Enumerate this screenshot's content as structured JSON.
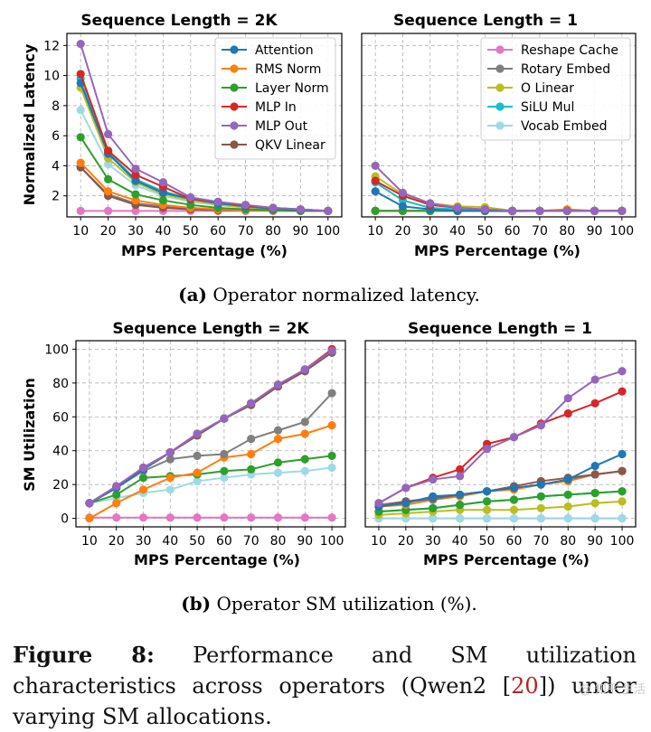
{
  "colors": {
    "Attention": "#1f77b4",
    "RMS Norm": "#ff7f0e",
    "Layer Norm": "#2ca02c",
    "MLP In": "#d62728",
    "MLP Out": "#9467bd",
    "QKV Linear": "#8c564b",
    "Reshape Cache": "#e377c2",
    "Rotary Embed": "#7f7f7f",
    "O Linear": "#bcbd22",
    "SiLU Mul": "#17becf",
    "Vocab Embed": "#9edae5"
  },
  "subcaptions": {
    "a_label": "(a)",
    "a_text": " Operator normalized latency.",
    "b_label": "(b)",
    "b_text": " Operator SM utilization (%)."
  },
  "caption": {
    "label": "Figure 8:",
    "text_before": " Performance and SM utilization characteristics across operators (Qwen2 [",
    "cite": "20",
    "text_after": "]) under varying SM allocations."
  },
  "watermark": "@ 知乎 生活",
  "chart_data": [
    {
      "id": "a-left",
      "type": "line",
      "title": "Sequence Length = 2K",
      "xlabel": "MPS Percentage (%)",
      "ylabel": "Normalized Latency",
      "x": [
        10,
        20,
        30,
        40,
        50,
        60,
        70,
        80,
        90,
        100
      ],
      "xlim": [
        5,
        105
      ],
      "ylim": [
        0.6,
        12.8
      ],
      "yticks": [
        2,
        4,
        6,
        8,
        10,
        12
      ],
      "legend": "top-right",
      "series": [
        {
          "name": "Attention",
          "values": [
            9.5,
            4.8,
            3.0,
            2.2,
            1.8,
            1.5,
            1.3,
            1.15,
            1.05,
            1.0
          ]
        },
        {
          "name": "RMS Norm",
          "values": [
            4.2,
            2.3,
            1.7,
            1.4,
            1.2,
            1.1,
            1.05,
            1.02,
            1.0,
            1.0
          ]
        },
        {
          "name": "Layer Norm",
          "values": [
            5.9,
            3.1,
            2.1,
            1.7,
            1.4,
            1.2,
            1.1,
            1.05,
            1.0,
            1.0
          ]
        },
        {
          "name": "MLP In",
          "values": [
            10.1,
            5.0,
            3.4,
            2.6,
            1.8,
            1.6,
            1.35,
            1.2,
            1.1,
            1.0
          ]
        },
        {
          "name": "MLP Out",
          "values": [
            12.1,
            6.1,
            3.8,
            2.9,
            1.9,
            1.6,
            1.4,
            1.2,
            1.1,
            1.0
          ]
        },
        {
          "name": "QKV Linear",
          "values": [
            3.9,
            2.0,
            1.4,
            1.2,
            1.1,
            1.05,
            1.05,
            1.02,
            1.0,
            1.0
          ]
        },
        {
          "name": "Reshape Cache",
          "values": [
            1.0,
            1.0,
            1.0,
            1.0,
            1.0,
            1.0,
            1.0,
            1.0,
            1.0,
            1.0
          ]
        },
        {
          "name": "Rotary Embed",
          "values": [
            3.9,
            2.1,
            1.5,
            1.3,
            1.2,
            1.1,
            1.05,
            1.02,
            1.0,
            1.0
          ]
        },
        {
          "name": "O Linear",
          "values": [
            9.2,
            4.5,
            2.9,
            2.1,
            1.7,
            1.4,
            1.25,
            1.15,
            1.05,
            1.0
          ]
        },
        {
          "name": "SiLU Mul",
          "values": [
            9.8,
            4.9,
            3.1,
            2.3,
            1.8,
            1.5,
            1.3,
            1.15,
            1.05,
            1.0
          ]
        },
        {
          "name": "Vocab Embed",
          "values": [
            7.7,
            4.1,
            2.7,
            2.0,
            1.6,
            1.4,
            1.2,
            1.1,
            1.05,
            1.0
          ]
        }
      ]
    },
    {
      "id": "a-right",
      "type": "line",
      "title": "Sequence Length = 1",
      "xlabel": "MPS Percentage (%)",
      "ylabel": "",
      "x": [
        10,
        20,
        30,
        40,
        50,
        60,
        70,
        80,
        90,
        100
      ],
      "xlim": [
        5,
        105
      ],
      "ylim": [
        0.6,
        12.8
      ],
      "yticks": [],
      "legend": "top-right",
      "series": [
        {
          "name": "Attention",
          "values": [
            2.3,
            1.3,
            1.1,
            1.0,
            1.0,
            1.0,
            1.0,
            1.0,
            1.0,
            1.0
          ]
        },
        {
          "name": "RMS Norm",
          "values": [
            1.0,
            1.0,
            1.0,
            1.0,
            1.0,
            1.0,
            1.0,
            1.1,
            1.0,
            1.0
          ]
        },
        {
          "name": "Layer Norm",
          "values": [
            1.0,
            1.0,
            1.0,
            1.0,
            1.0,
            1.0,
            1.0,
            1.0,
            1.0,
            1.0
          ]
        },
        {
          "name": "MLP In",
          "values": [
            3.0,
            2.0,
            1.4,
            1.2,
            1.1,
            1.0,
            1.0,
            1.0,
            1.0,
            1.0
          ]
        },
        {
          "name": "MLP Out",
          "values": [
            4.0,
            2.2,
            1.5,
            1.2,
            1.1,
            1.0,
            1.0,
            1.0,
            1.0,
            1.0
          ]
        },
        {
          "name": "QKV Linear",
          "values": [
            1.0,
            1.0,
            1.0,
            1.0,
            1.0,
            1.0,
            1.0,
            1.0,
            1.0,
            1.0
          ]
        },
        {
          "name": "Reshape Cache",
          "values": [
            1.0,
            1.0,
            1.0,
            1.0,
            1.0,
            1.0,
            1.0,
            1.0,
            1.0,
            1.0
          ]
        },
        {
          "name": "Rotary Embed",
          "values": [
            1.0,
            1.0,
            1.0,
            1.0,
            1.0,
            1.0,
            1.0,
            1.0,
            1.0,
            1.0
          ]
        },
        {
          "name": "O Linear",
          "values": [
            3.3,
            2.1,
            1.5,
            1.3,
            1.25,
            1.0,
            1.0,
            1.0,
            1.0,
            1.0
          ]
        },
        {
          "name": "SiLU Mul",
          "values": [
            2.9,
            1.7,
            1.2,
            1.1,
            1.0,
            1.0,
            1.0,
            1.0,
            1.0,
            1.0
          ]
        },
        {
          "name": "Vocab Embed",
          "values": [
            1.0,
            1.0,
            1.0,
            1.0,
            1.0,
            0.95,
            1.0,
            1.0,
            1.0,
            1.0
          ]
        }
      ]
    },
    {
      "id": "b-left",
      "type": "line",
      "title": "Sequence Length = 2K",
      "xlabel": "MPS Percentage (%)",
      "ylabel": "SM Utilization",
      "x": [
        10,
        20,
        30,
        40,
        50,
        60,
        70,
        80,
        90,
        100
      ],
      "xlim": [
        5,
        105
      ],
      "ylim": [
        -5,
        105
      ],
      "yticks": [
        0,
        20,
        40,
        60,
        80,
        100
      ],
      "series": [
        {
          "name": "Attention",
          "values": [
            9,
            18,
            29,
            39,
            50,
            59,
            68,
            79,
            88,
            99
          ]
        },
        {
          "name": "RMS Norm",
          "values": [
            0,
            9,
            17,
            24,
            27,
            36,
            38,
            47,
            50,
            55
          ]
        },
        {
          "name": "Layer Norm",
          "values": [
            9,
            14,
            24,
            25,
            26,
            28,
            29,
            33,
            35,
            37
          ]
        },
        {
          "name": "MLP In",
          "values": [
            9,
            19,
            30,
            39,
            50,
            59,
            68,
            79,
            88,
            100
          ]
        },
        {
          "name": "MLP Out",
          "values": [
            9,
            19,
            30,
            39,
            50,
            59,
            68,
            79,
            88,
            99
          ]
        },
        {
          "name": "QKV Linear",
          "values": [
            9,
            18,
            29,
            39,
            49,
            59,
            67,
            78,
            87,
            98
          ]
        },
        {
          "name": "Reshape Cache",
          "values": [
            0.5,
            0.5,
            0.5,
            0.5,
            0.5,
            0.5,
            0.5,
            0.5,
            0.5,
            0.5
          ]
        },
        {
          "name": "Rotary Embed",
          "values": [
            9,
            18,
            28,
            35,
            37,
            38,
            47,
            52,
            57,
            74
          ]
        },
        {
          "name": "O Linear",
          "values": [
            9,
            18,
            29,
            39,
            49,
            59,
            68,
            79,
            88,
            98
          ]
        },
        {
          "name": "SiLU Mul",
          "values": [
            9,
            18,
            29,
            39,
            49,
            59,
            67,
            78,
            87,
            98
          ]
        },
        {
          "name": "Vocab Embed",
          "values": [
            9,
            12,
            15,
            17,
            22,
            24,
            26,
            27,
            28,
            30
          ]
        }
      ]
    },
    {
      "id": "b-right",
      "type": "line",
      "title": "Sequence Length = 1",
      "xlabel": "MPS Percentage (%)",
      "ylabel": "",
      "x": [
        10,
        20,
        30,
        40,
        50,
        60,
        70,
        80,
        90,
        100
      ],
      "xlim": [
        5,
        105
      ],
      "ylim": [
        -5,
        105
      ],
      "yticks": [],
      "series": [
        {
          "name": "Attention",
          "values": [
            7,
            9,
            13,
            14,
            16,
            18,
            20,
            23,
            31,
            38
          ]
        },
        {
          "name": "RMS Norm",
          "values": [
            7,
            8,
            11,
            13,
            16,
            17,
            20,
            22,
            26,
            28
          ]
        },
        {
          "name": "Layer Norm",
          "values": [
            4,
            5,
            6,
            8,
            10,
            11,
            13,
            14,
            15,
            16
          ]
        },
        {
          "name": "MLP In",
          "values": [
            9,
            18,
            24,
            29,
            44,
            48,
            56,
            62,
            68,
            75
          ]
        },
        {
          "name": "MLP Out",
          "values": [
            9,
            18,
            23,
            25,
            41,
            48,
            55,
            71,
            82,
            87
          ]
        },
        {
          "name": "QKV Linear",
          "values": [
            7,
            10,
            12,
            14,
            16,
            19,
            22,
            24,
            26,
            28
          ]
        },
        {
          "name": "Reshape Cache",
          "values": [
            0,
            0,
            0,
            0,
            0,
            0,
            0,
            0,
            0,
            0
          ]
        },
        {
          "name": "Rotary Embed",
          "values": [
            8,
            10,
            11,
            14,
            16,
            18,
            20,
            23,
            26,
            28
          ]
        },
        {
          "name": "O Linear",
          "values": [
            2,
            3,
            4,
            5,
            5,
            5,
            6,
            7,
            9,
            10
          ]
        },
        {
          "name": "SiLU Mul",
          "values": [
            4,
            5,
            6,
            8,
            10,
            11,
            13,
            14,
            15,
            16
          ]
        },
        {
          "name": "Vocab Embed",
          "values": [
            0,
            0,
            0,
            0,
            0,
            0,
            0,
            0,
            0,
            0
          ]
        }
      ]
    }
  ]
}
